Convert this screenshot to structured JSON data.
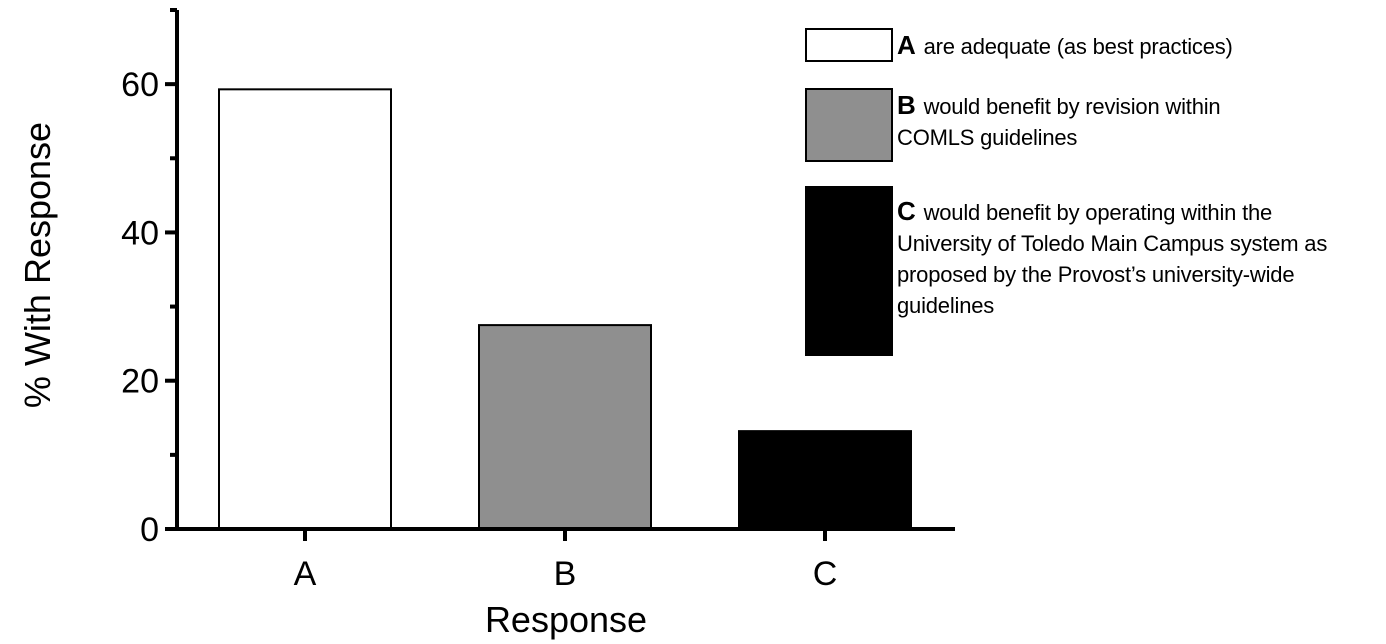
{
  "chart_data": {
    "type": "bar",
    "categories": [
      "A",
      "B",
      "C"
    ],
    "values": [
      59.3,
      27.5,
      13.2
    ],
    "colors": [
      "#ffffff",
      "#8f8f8f",
      "#000000"
    ],
    "xlabel": "Response",
    "ylabel": "% With Response",
    "ylim": [
      0,
      70
    ],
    "yticks": [
      "0",
      "20",
      "40",
      "60"
    ],
    "grid": false,
    "legend_position": "top-right",
    "legend": [
      {
        "letter": "A",
        "text": "are adequate (as best practices)"
      },
      {
        "letter": "B",
        "text": "would benefit by revision within COMLS guidelines"
      },
      {
        "letter": "C",
        "text": "would benefit by operating within the University of Toledo Main Campus system as proposed by the Provost’s university-wide guidelines"
      }
    ]
  }
}
